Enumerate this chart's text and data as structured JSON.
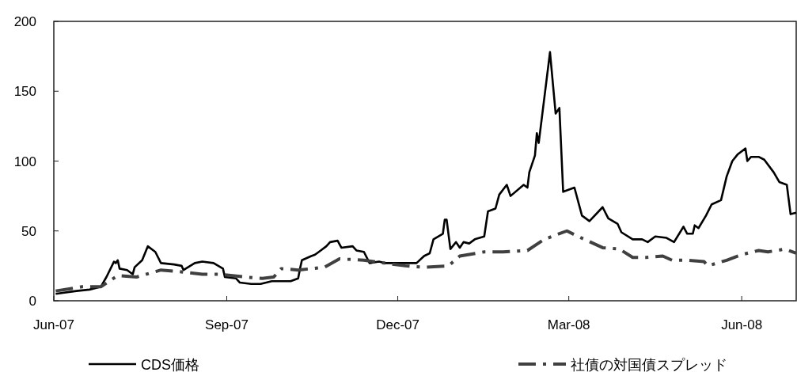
{
  "chart_data": {
    "type": "line",
    "xlim": [
      "2007-06-01",
      "2008-06-30"
    ],
    "xticks": [
      {
        "value": "2007-06-01",
        "label": "Jun-07"
      },
      {
        "value": "2007-09-01",
        "label": "Sep-07"
      },
      {
        "value": "2007-12-01",
        "label": "Dec-07"
      },
      {
        "value": "2008-03-01",
        "label": "Mar-08"
      },
      {
        "value": "2008-06-01",
        "label": "Jun-08"
      }
    ],
    "ylim": [
      0,
      200
    ],
    "yticks": [
      0,
      50,
      100,
      150,
      200
    ],
    "grid": false,
    "legend": "bottom",
    "marker": "none",
    "series": [
      {
        "name": "CDS価格",
        "color": "#000000",
        "line_style": "solid",
        "x": [
          "2007-06-02",
          "2007-06-13",
          "2007-06-20",
          "2007-06-26",
          "2007-06-29",
          "2007-07-03",
          "2007-07-04",
          "2007-07-05",
          "2007-07-06",
          "2007-07-10",
          "2007-07-13",
          "2007-07-14",
          "2007-07-18",
          "2007-07-21",
          "2007-07-25",
          "2007-07-28",
          "2007-08-04",
          "2007-08-08",
          "2007-08-09",
          "2007-08-15",
          "2007-08-19",
          "2007-08-25",
          "2007-08-30",
          "2007-08-31",
          "2007-09-06",
          "2007-09-08",
          "2007-09-14",
          "2007-09-19",
          "2007-09-25",
          "2007-10-05",
          "2007-10-09",
          "2007-10-10",
          "2007-10-11",
          "2007-10-16",
          "2007-10-18",
          "2007-10-21",
          "2007-10-24",
          "2007-10-26",
          "2007-10-30",
          "2007-11-01",
          "2007-11-07",
          "2007-11-09",
          "2007-11-13",
          "2007-11-16",
          "2007-11-21",
          "2007-11-24",
          "2007-12-11",
          "2007-12-15",
          "2007-12-18",
          "2007-12-20",
          "2007-12-25",
          "2007-12-26",
          "2007-12-27",
          "2007-12-29",
          "2008-01-01",
          "2008-01-03",
          "2008-01-05",
          "2008-01-08",
          "2008-01-11",
          "2008-01-16",
          "2008-01-18",
          "2008-01-22",
          "2008-01-24",
          "2008-01-28",
          "2008-01-30",
          "2008-02-06",
          "2008-02-08",
          "2008-02-09",
          "2008-02-12",
          "2008-02-13",
          "2008-02-14",
          "2008-02-20",
          "2008-02-23",
          "2008-02-25",
          "2008-02-27",
          "2008-03-04",
          "2008-03-08",
          "2008-03-12",
          "2008-03-19",
          "2008-03-22",
          "2008-03-27",
          "2008-03-29",
          "2008-04-04",
          "2008-04-09",
          "2008-04-12",
          "2008-04-16",
          "2008-04-22",
          "2008-04-26",
          "2008-05-01",
          "2008-05-03",
          "2008-05-06",
          "2008-05-07",
          "2008-05-09",
          "2008-05-13",
          "2008-05-16",
          "2008-05-21",
          "2008-05-24",
          "2008-05-27",
          "2008-05-30",
          "2008-06-03",
          "2008-06-04",
          "2008-06-06",
          "2008-06-10",
          "2008-06-13",
          "2008-06-18",
          "2008-06-21",
          "2008-06-25",
          "2008-06-27",
          "2008-06-30"
        ],
        "values": [
          5,
          7,
          8,
          10,
          17,
          28,
          27,
          29,
          23,
          22,
          19,
          24,
          29,
          39,
          35,
          27,
          26,
          25,
          22,
          27,
          28,
          27,
          23,
          17,
          16,
          13,
          12,
          12,
          14,
          14,
          16,
          23,
          29,
          32,
          33,
          36,
          39,
          42,
          43,
          38,
          39,
          36,
          35,
          27,
          28,
          27,
          27,
          32,
          34,
          44,
          48,
          58,
          58,
          37,
          42,
          38,
          42,
          41,
          44,
          46,
          64,
          66,
          76,
          83,
          75,
          83,
          81,
          92,
          104,
          120,
          113,
          178,
          134,
          138,
          78,
          81,
          61,
          57,
          67,
          59,
          55,
          49,
          44,
          44,
          42,
          46,
          45,
          42,
          53,
          48,
          48,
          54,
          52,
          61,
          69,
          72,
          89,
          100,
          105,
          109,
          100,
          103,
          103,
          101,
          92,
          85,
          83,
          62,
          63
        ]
      },
      {
        "name": "社債の対国債スプレッド",
        "color": "#404040",
        "line_style": "dashed",
        "x": [
          "2007-06-02",
          "2007-06-16",
          "2007-06-26",
          "2007-07-05",
          "2007-07-15",
          "2007-07-28",
          "2007-08-06",
          "2007-08-19",
          "2007-08-28",
          "2007-09-11",
          "2007-09-20",
          "2007-09-26",
          "2007-09-30",
          "2007-10-09",
          "2007-10-23",
          "2007-10-31",
          "2007-11-13",
          "2007-11-24",
          "2007-12-05",
          "2007-12-15",
          "2007-12-28",
          "2008-01-03",
          "2008-01-16",
          "2008-01-26",
          "2008-02-08",
          "2008-02-17",
          "2008-02-29",
          "2008-03-06",
          "2008-03-19",
          "2008-03-28",
          "2008-04-04",
          "2008-04-11",
          "2008-04-20",
          "2008-04-25",
          "2008-05-03",
          "2008-05-12",
          "2008-05-14",
          "2008-05-24",
          "2008-06-01",
          "2008-06-10",
          "2008-06-15",
          "2008-06-24",
          "2008-06-30"
        ],
        "values": [
          7,
          10,
          10,
          18,
          17,
          22,
          21,
          19,
          19,
          17,
          16,
          17,
          23,
          22,
          24,
          30,
          29,
          27,
          25,
          24,
          25,
          32,
          35,
          35,
          36,
          44,
          50,
          46,
          38,
          37,
          31,
          31,
          32,
          29,
          29,
          28,
          25,
          29,
          33,
          36,
          35,
          37,
          34
        ]
      }
    ]
  }
}
